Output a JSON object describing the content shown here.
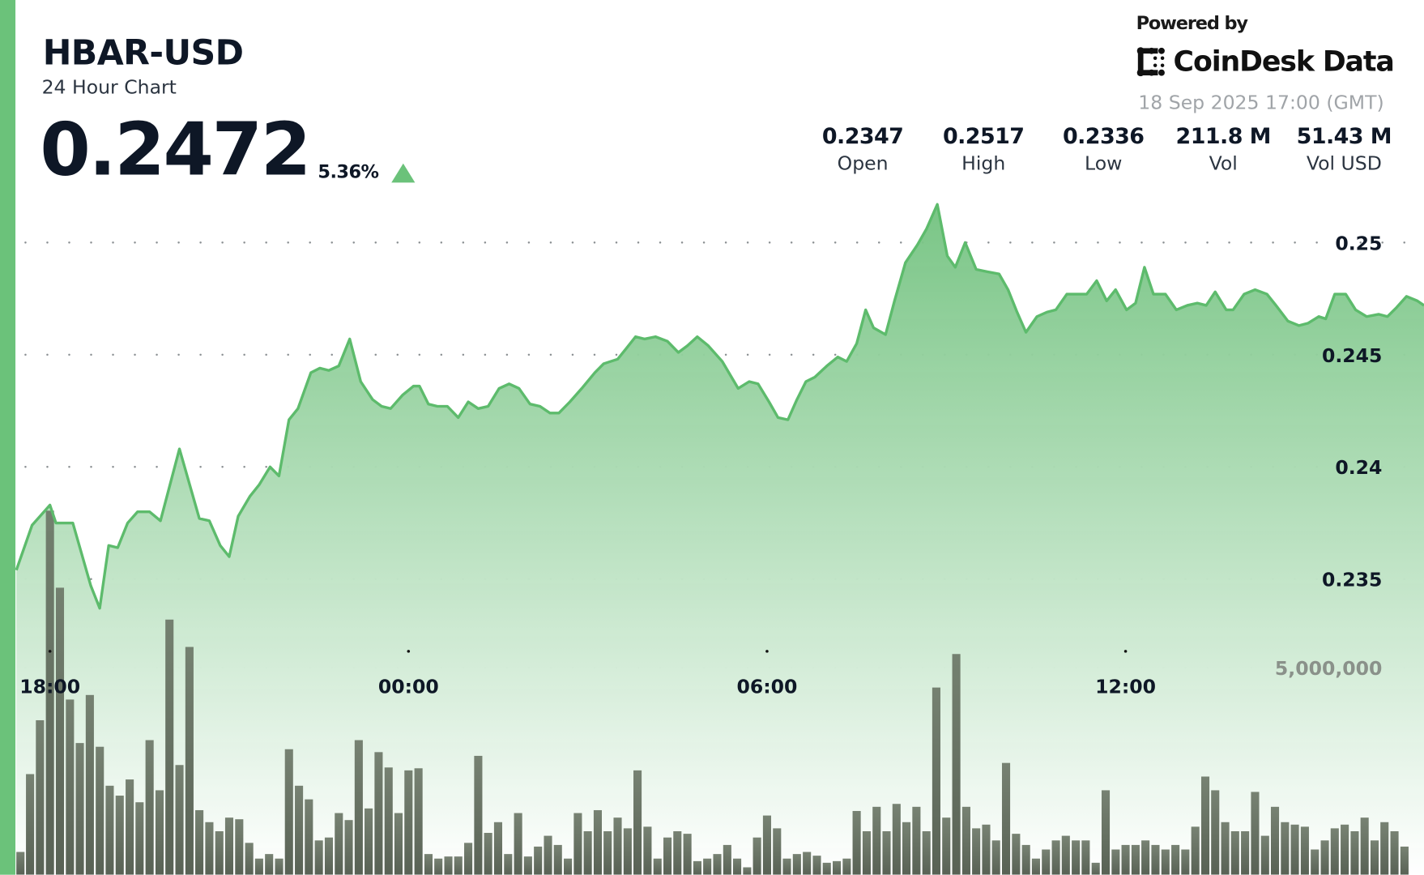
{
  "header": {
    "symbol": "HBAR-USD",
    "subtitle": "24 Hour Chart",
    "price": "0.2472",
    "change_pct": "5.36%",
    "change_direction": "up",
    "accent_color": "#6bc27a"
  },
  "branding": {
    "powered_by": "Powered by",
    "logo_text": "CoinDesk Data",
    "timestamp": "18 Sep 2025 17:00 (GMT)"
  },
  "stats": [
    {
      "value": "0.2347",
      "label": "Open"
    },
    {
      "value": "0.2517",
      "label": "High"
    },
    {
      "value": "0.2336",
      "label": "Low"
    },
    {
      "value": "211.8 M",
      "label": "Vol"
    },
    {
      "value": "51.43 M",
      "label": "Vol USD"
    }
  ],
  "chart_data": {
    "type": "area",
    "price_axis": {
      "ticks": [
        0.25,
        0.245,
        0.24,
        0.235
      ],
      "tick_labels": [
        "0.25",
        "0.245",
        "0.24",
        "0.235"
      ]
    },
    "volume_axis": {
      "ticks": [
        5000000
      ],
      "tick_labels": [
        "5,000,000"
      ]
    },
    "x_axis": {
      "ticks": [
        "18:00",
        "00:00",
        "06:00",
        "12:00"
      ]
    },
    "grid": "dotted",
    "line_color": "#5dbb6c",
    "bar_color": "#5a6556",
    "price_series": {
      "x": [
        "17:26",
        "17:42",
        "18:00",
        "18:06",
        "18:23",
        "18:41",
        "18:50",
        "18:59",
        "19:08",
        "19:18",
        "19:28",
        "19:40",
        "19:51",
        "20:10",
        "20:30",
        "20:40",
        "20:51",
        "21:00",
        "21:09",
        "21:21",
        "21:30",
        "21:41",
        "21:50",
        "22:00",
        "22:09",
        "22:22",
        "22:31",
        "22:40",
        "22:50",
        "23:01",
        "23:12",
        "23:24",
        "23:33",
        "23:42",
        "23:54",
        "00:05",
        "00:11",
        "00:20",
        "00:29",
        "00:39",
        "00:50",
        "01:00",
        "01:10",
        "01:20",
        "01:31",
        "01:41",
        "01:51",
        "02:02",
        "02:12",
        "02:22",
        "02:31",
        "02:42",
        "02:54",
        "03:07",
        "03:16",
        "03:30",
        "03:39",
        "03:48",
        "03:57",
        "04:08",
        "04:20",
        "04:31",
        "04:40",
        "04:50",
        "05:01",
        "05:15",
        "05:31",
        "05:42",
        "05:51",
        "06:02",
        "06:11",
        "06:21",
        "06:30",
        "06:39",
        "06:48",
        "07:00",
        "07:11",
        "07:20",
        "07:30",
        "07:39",
        "07:47",
        "07:59",
        "08:08",
        "08:19",
        "08:31",
        "08:40",
        "08:51",
        "09:01",
        "09:09",
        "09:19",
        "09:30",
        "09:41",
        "09:53",
        "10:02",
        "10:11",
        "10:20",
        "10:31",
        "10:41",
        "10:50",
        "11:01",
        "11:11",
        "11:21",
        "11:31",
        "11:41",
        "11:50",
        "12:01",
        "12:10",
        "12:19",
        "12:28",
        "12:40",
        "12:51",
        "13:02",
        "13:12",
        "13:21",
        "13:30",
        "13:41",
        "13:48",
        "13:59",
        "14:10",
        "14:22",
        "14:31",
        "14:43",
        "14:54",
        "15:03",
        "15:14",
        "15:21",
        "15:30",
        "15:41",
        "15:51",
        "16:02",
        "16:14",
        "16:23",
        "16:32",
        "16:42",
        "16:53",
        "17:00"
      ],
      "y": [
        0.2354,
        0.2374,
        0.2383,
        0.2375,
        0.2375,
        0.2347,
        0.2337,
        0.2365,
        0.2364,
        0.2375,
        0.238,
        0.238,
        0.2376,
        0.2408,
        0.2377,
        0.2376,
        0.2365,
        0.236,
        0.2378,
        0.2387,
        0.2392,
        0.24,
        0.2396,
        0.2421,
        0.2426,
        0.2442,
        0.2444,
        0.2443,
        0.2445,
        0.2457,
        0.2438,
        0.243,
        0.2427,
        0.2426,
        0.2432,
        0.2436,
        0.2436,
        0.2428,
        0.2427,
        0.2427,
        0.2422,
        0.2429,
        0.2426,
        0.2427,
        0.2435,
        0.2437,
        0.2435,
        0.2428,
        0.2427,
        0.2424,
        0.2424,
        0.2429,
        0.2435,
        0.2442,
        0.2446,
        0.2448,
        0.2453,
        0.2458,
        0.2457,
        0.2458,
        0.2456,
        0.2451,
        0.2454,
        0.2458,
        0.2454,
        0.2447,
        0.2435,
        0.2438,
        0.2437,
        0.2429,
        0.2422,
        0.2421,
        0.243,
        0.2438,
        0.244,
        0.2445,
        0.2449,
        0.2447,
        0.2455,
        0.247,
        0.2462,
        0.2459,
        0.2474,
        0.2491,
        0.2499,
        0.2506,
        0.2517,
        0.2494,
        0.2489,
        0.25,
        0.2488,
        0.2487,
        0.2486,
        0.2479,
        0.2469,
        0.246,
        0.2467,
        0.2469,
        0.247,
        0.2477,
        0.2477,
        0.2477,
        0.2483,
        0.2474,
        0.2479,
        0.247,
        0.2473,
        0.2489,
        0.2477,
        0.2477,
        0.247,
        0.2472,
        0.2473,
        0.2472,
        0.2478,
        0.247,
        0.247,
        0.2477,
        0.2479,
        0.2477,
        0.2472,
        0.2465,
        0.2463,
        0.2464,
        0.2467,
        0.2466,
        0.2477,
        0.2477,
        0.247,
        0.2467,
        0.2468,
        0.2467,
        0.2471,
        0.2476,
        0.2474,
        0.2472
      ]
    },
    "volume_series": {
      "start_time": "17:30",
      "interval_minutes": 10,
      "values": [
        550000,
        2430000,
        3730000,
        8790000,
        6930000,
        4230000,
        3180000,
        4340000,
        3090000,
        2150000,
        1910000,
        2300000,
        1750000,
        3250000,
        2040000,
        6160000,
        2650000,
        5500000,
        1560000,
        1270000,
        1050000,
        1380000,
        1340000,
        770000,
        390000,
        500000,
        390000,
        3030000,
        2150000,
        1820000,
        830000,
        900000,
        1490000,
        1320000,
        3250000,
        1600000,
        2960000,
        2590000,
        1490000,
        2520000,
        2570000,
        500000,
        390000,
        440000,
        440000,
        770000,
        2870000,
        1010000,
        1270000,
        500000,
        1490000,
        440000,
        680000,
        940000,
        720000,
        390000,
        1490000,
        1050000,
        1560000,
        1050000,
        1380000,
        1120000,
        2520000,
        1160000,
        390000,
        900000,
        1050000,
        990000,
        330000,
        390000,
        500000,
        720000,
        390000,
        180000,
        900000,
        1430000,
        1120000,
        390000,
        500000,
        550000,
        460000,
        290000,
        330000,
        390000,
        1540000,
        1050000,
        1640000,
        1050000,
        1710000,
        1270000,
        1640000,
        1050000,
        4520000,
        1380000,
        5330000,
        1640000,
        1120000,
        1210000,
        830000,
        2700000,
        990000,
        720000,
        390000,
        610000,
        830000,
        940000,
        830000,
        830000,
        290000,
        2040000,
        610000,
        720000,
        720000,
        830000,
        720000,
        610000,
        720000,
        610000,
        1160000,
        2370000,
        2040000,
        1270000,
        1050000,
        1050000,
        2000000,
        940000,
        1640000,
        1270000,
        1210000,
        1160000,
        610000,
        830000,
        1120000,
        1210000,
        1050000,
        1380000,
        830000,
        1270000,
        1050000,
        680000
      ]
    }
  }
}
